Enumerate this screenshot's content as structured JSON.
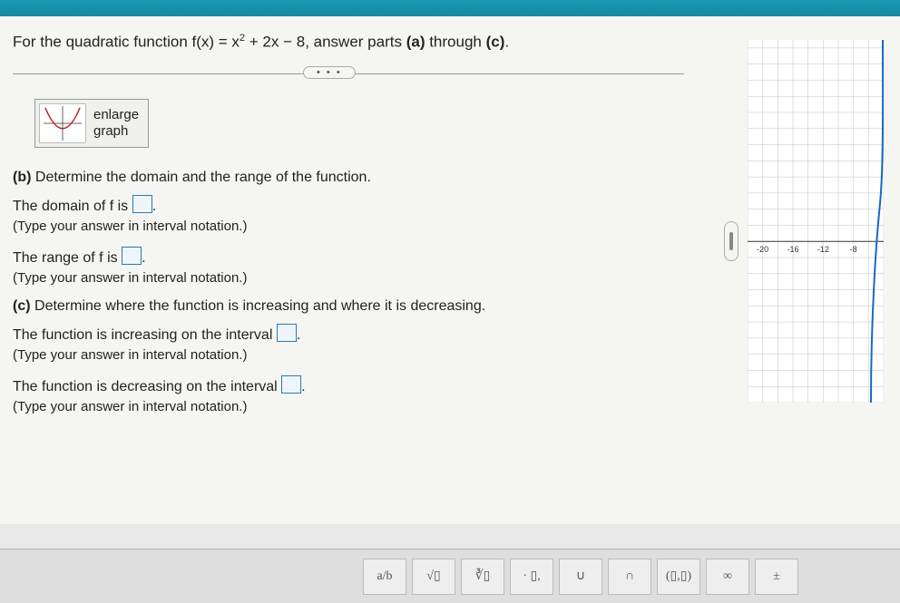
{
  "colors": {
    "top_bar": "#158aa0",
    "page_bg": "#f5f5f2",
    "text": "#222222",
    "box_border": "#2a7ab0",
    "box_fill": "#eef5fb",
    "grid": "#b8c4d0",
    "axis": "#333333",
    "curve": "#1868c4",
    "toolbar_bg": "#dedede"
  },
  "question": {
    "stem_pre": "For the quadratic function f(x) = x",
    "stem_exp": "2",
    "stem_post": " + 2x − 8, answer parts ",
    "stem_a": "(a)",
    "stem_mid": " through ",
    "stem_c": "(c)",
    "stem_end": "."
  },
  "enlarge": {
    "line1": "enlarge",
    "line2": "graph"
  },
  "partB": {
    "label": "(b)",
    "heading_rest": " Determine the domain and the range of the function.",
    "domain_pre": "The domain of f is ",
    "domain_post": ".",
    "range_pre": "The range of f is ",
    "range_post": ".",
    "hint": "(Type your answer in interval notation.)"
  },
  "partC": {
    "label": "(c)",
    "heading_rest": " Determine where the function is increasing and where it is decreasing.",
    "inc_pre": "The function is increasing on the interval ",
    "inc_post": ".",
    "dec_pre": "The function is decreasing on the interval ",
    "dec_post": ".",
    "hint": "(Type your answer in interval notation.)"
  },
  "ellipsis": "• • •",
  "graph": {
    "x_ticks": [
      -20,
      -16,
      -12,
      -8
    ],
    "x_min": -22,
    "x_max": -4,
    "y_min": -40,
    "y_max": 50,
    "grid_step_x": 2,
    "grid_step_y": 4,
    "curve_color": "#1868c4",
    "grid_color": "#b8c4d0",
    "axis_color": "#333333",
    "bg_color": "#ffffff"
  },
  "toolbar": {
    "items": [
      {
        "label_html": "a/b",
        "name": "fraction-button"
      },
      {
        "label_html": "√▯",
        "name": "sqrt-button"
      },
      {
        "label_html": "∛▯",
        "name": "cuberoot-button"
      },
      {
        "label_html": "· ▯,",
        "name": "mixed-button"
      },
      {
        "label_html": "∪",
        "name": "union-button"
      },
      {
        "label_html": "∩",
        "name": "intersect-button"
      },
      {
        "label_html": "(▯,▯)",
        "name": "interval-button"
      },
      {
        "label_html": "∞",
        "name": "infinity-button"
      },
      {
        "label_html": "±",
        "name": "plusminus-button"
      }
    ]
  }
}
